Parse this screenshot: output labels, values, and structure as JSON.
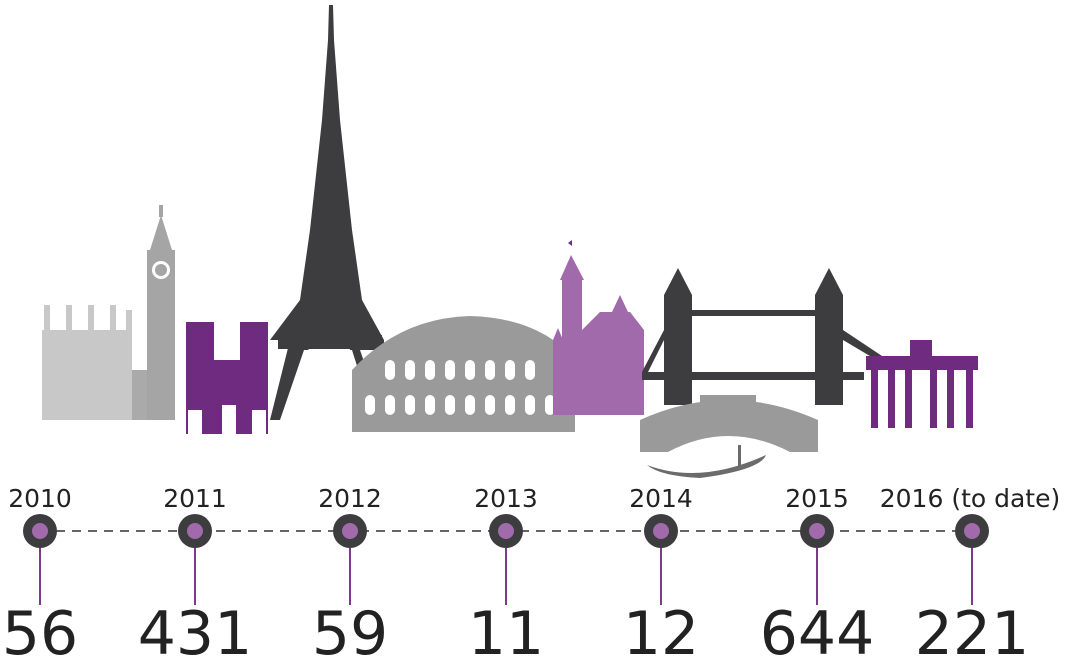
{
  "timeline": {
    "items": [
      {
        "year": "2010",
        "count": "56"
      },
      {
        "year": "2011",
        "count": "431"
      },
      {
        "year": "2012",
        "count": "59"
      },
      {
        "year": "2013",
        "count": "11"
      },
      {
        "year": "2014",
        "count": "12"
      },
      {
        "year": "2015",
        "count": "644"
      },
      {
        "year": "2016 (to date)",
        "count": "221"
      }
    ]
  }
}
